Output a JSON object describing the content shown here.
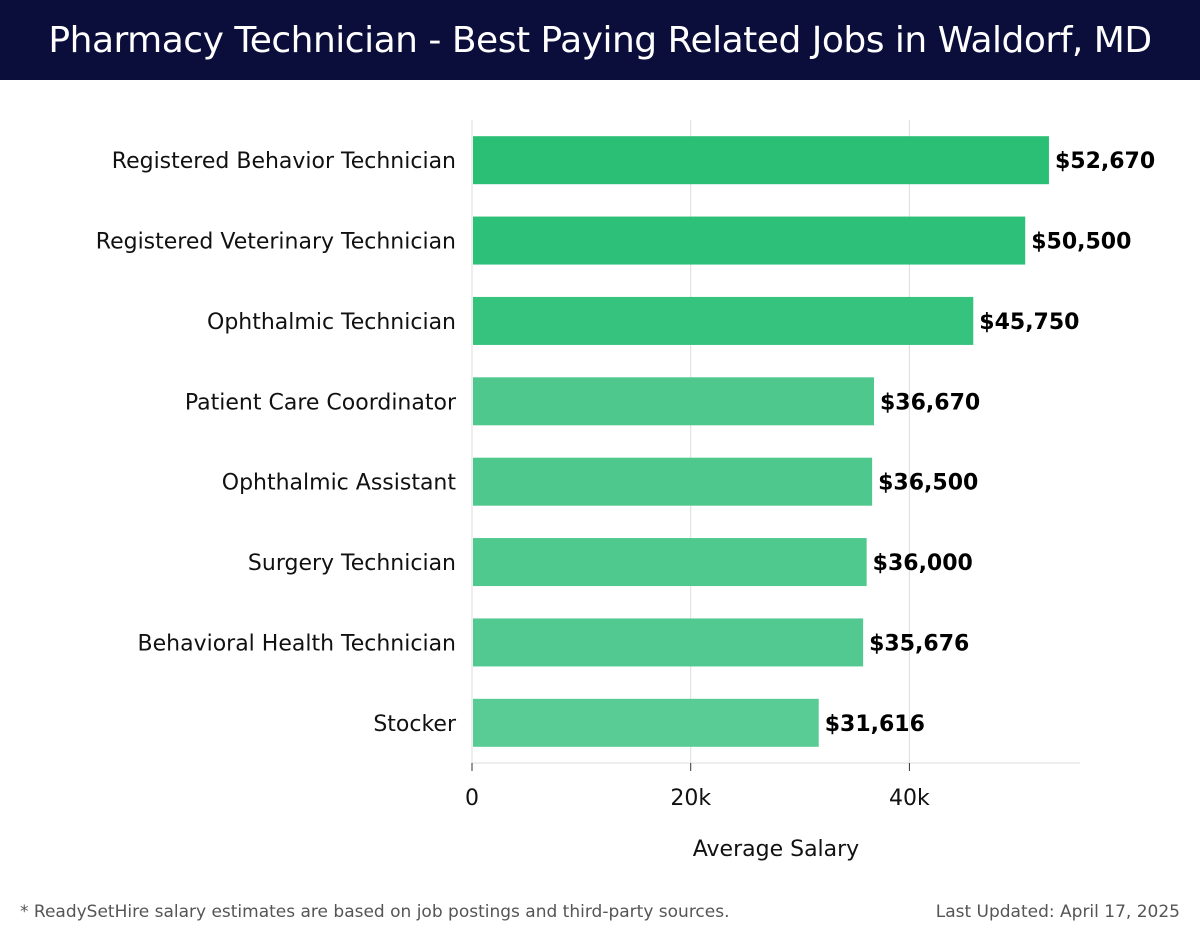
{
  "header": {
    "title": "Pharmacy Technician - Best Paying Related Jobs in Waldorf, MD"
  },
  "chart_data": {
    "type": "bar",
    "orientation": "horizontal",
    "categories": [
      "Registered Behavior Technician",
      "Registered Veterinary Technician",
      "Ophthalmic Technician",
      "Patient Care Coordinator",
      "Ophthalmic Assistant",
      "Surgery Technician",
      "Behavioral Health Technician",
      "Stocker"
    ],
    "values": [
      52670,
      50500,
      45750,
      36670,
      36500,
      36000,
      35676,
      31616
    ],
    "value_labels": [
      "$52,670",
      "$50,500",
      "$45,750",
      "$36,670",
      "$36,500",
      "$36,000",
      "$35,676",
      "$31,616"
    ],
    "bar_colors": [
      "#2bbf76",
      "#2dc078",
      "#35c37e",
      "#4fc88e",
      "#4fc88e",
      "#50c98f",
      "#52c990",
      "#58cc94"
    ],
    "title": "",
    "xlabel": "Average Salary",
    "ylabel": "",
    "xlim": [
      0,
      55600
    ],
    "xticks": [
      0,
      20000,
      40000
    ],
    "xtick_labels": [
      "0",
      "20k",
      "40k"
    ],
    "grid": true
  },
  "footer": {
    "note": "* ReadySetHire salary estimates are based on job postings and third-party sources.",
    "updated": "Last Updated: April 17, 2025"
  }
}
